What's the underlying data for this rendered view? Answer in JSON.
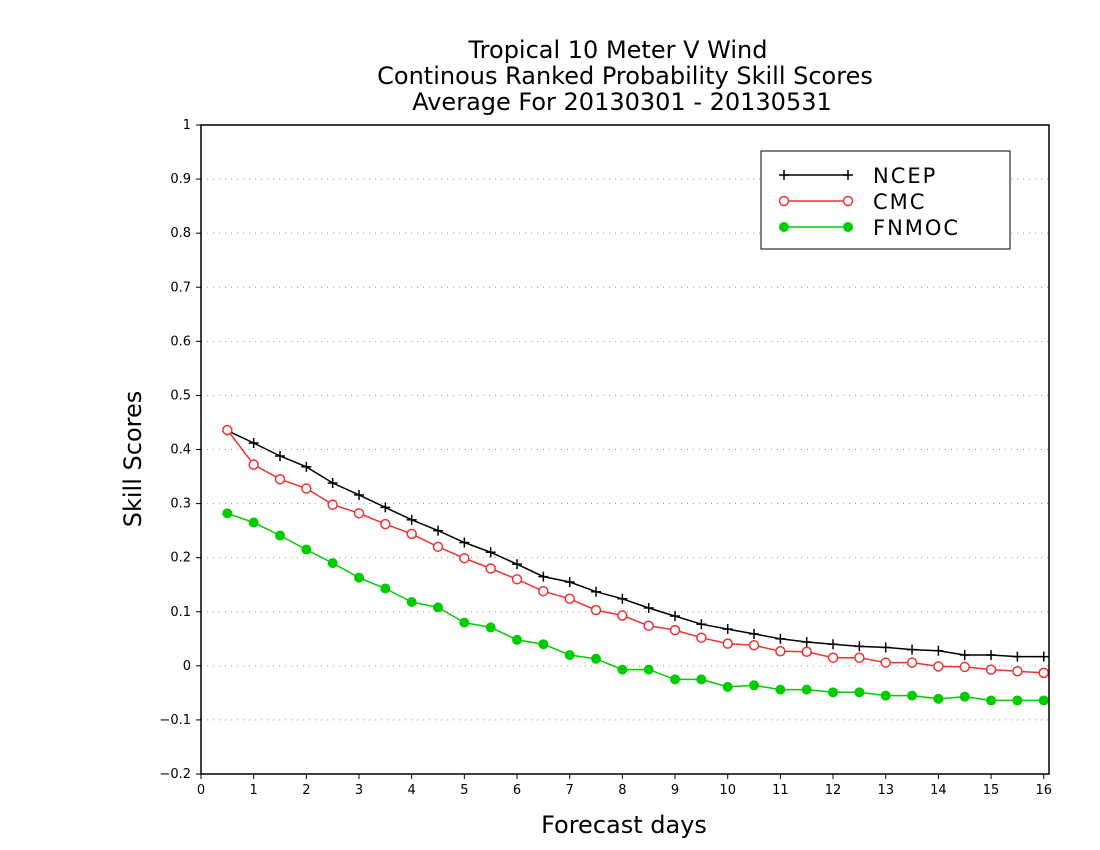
{
  "chart_data": {
    "type": "line",
    "title_lines": [
      "Tropical 10 Meter V Wind",
      "Continous Ranked Probability Skill Scores",
      "Average For 20130301 - 20130531"
    ],
    "xlabel": "Forecast days",
    "ylabel": "Skill Scores",
    "xlim": [
      0,
      16.1
    ],
    "ylim": [
      -0.2,
      1
    ],
    "xticks": [
      0,
      1,
      2,
      3,
      4,
      5,
      6,
      7,
      8,
      9,
      10,
      11,
      12,
      13,
      14,
      15,
      16
    ],
    "yticks": [
      -0.2,
      -0.1,
      0,
      0.1,
      0.2,
      0.3,
      0.4,
      0.5,
      0.6,
      0.7,
      0.8,
      0.9,
      1
    ],
    "ytick_labels": [
      "−0.2",
      "−0.1",
      "0",
      "0.1",
      "0.2",
      "0.3",
      "0.4",
      "0.5",
      "0.6",
      "0.7",
      "0.8",
      "0.9",
      "1"
    ],
    "grid": "horizontal dotted",
    "legend_position": "top-right",
    "x": [
      0.5,
      1,
      1.5,
      2,
      2.5,
      3,
      3.5,
      4,
      4.5,
      5,
      5.5,
      6,
      6.5,
      7,
      7.5,
      8,
      8.5,
      9,
      9.5,
      10,
      10.5,
      11,
      11.5,
      12,
      12.5,
      13,
      13.5,
      14,
      14.5,
      15,
      15.5,
      16
    ],
    "series": [
      {
        "name": "NCEP",
        "color": "#000000",
        "marker": "plus",
        "values": [
          0.435,
          0.412,
          0.388,
          0.368,
          0.338,
          0.316,
          0.293,
          0.27,
          0.25,
          0.228,
          0.21,
          0.188,
          0.165,
          0.155,
          0.137,
          0.124,
          0.107,
          0.092,
          0.077,
          0.068,
          0.059,
          0.05,
          0.044,
          0.04,
          0.036,
          0.034,
          0.03,
          0.028,
          0.02,
          0.02,
          0.017,
          0.017
        ]
      },
      {
        "name": "CMC",
        "color": "#ee3333",
        "marker": "open-circle",
        "values": [
          0.436,
          0.372,
          0.345,
          0.328,
          0.298,
          0.282,
          0.262,
          0.244,
          0.22,
          0.199,
          0.18,
          0.16,
          0.138,
          0.124,
          0.103,
          0.093,
          0.074,
          0.066,
          0.052,
          0.041,
          0.038,
          0.027,
          0.026,
          0.015,
          0.015,
          0.006,
          0.006,
          -0.001,
          -0.002,
          -0.007,
          -0.01,
          -0.013
        ]
      },
      {
        "name": "FNMOC",
        "color": "#00cc00",
        "marker": "filled-circle",
        "values": [
          0.282,
          0.265,
          0.241,
          0.215,
          0.19,
          0.163,
          0.143,
          0.118,
          0.108,
          0.08,
          0.071,
          0.048,
          0.04,
          0.02,
          0.013,
          -0.007,
          -0.007,
          -0.025,
          -0.025,
          -0.039,
          -0.036,
          -0.044,
          -0.044,
          -0.049,
          -0.049,
          -0.055,
          -0.055,
          -0.061,
          -0.057,
          -0.064,
          -0.064,
          -0.064
        ]
      }
    ]
  }
}
